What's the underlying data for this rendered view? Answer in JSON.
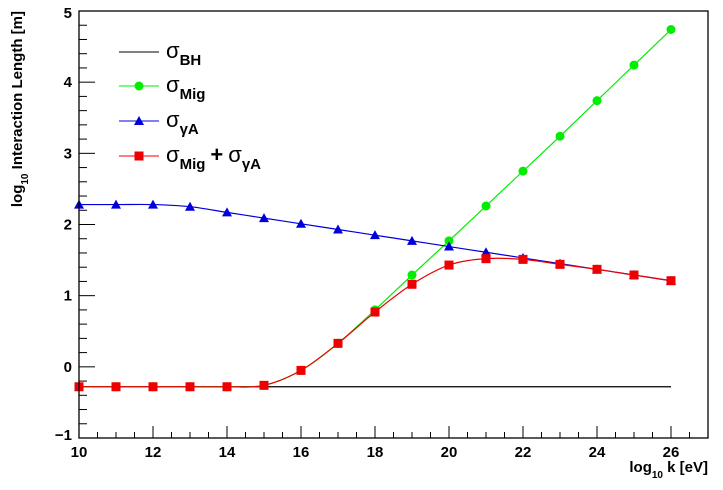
{
  "chart_data": {
    "type": "line",
    "xlabel": "log",
    "xlabel_sub": "10",
    "xlabel_rest": " k [eV]",
    "ylabel": "log",
    "ylabel_sub": "10",
    "ylabel_rest": " Interaction Length [m]",
    "xlim": [
      10,
      27
    ],
    "ylim": [
      -1,
      5
    ],
    "x_ticks": [
      10,
      12,
      14,
      16,
      18,
      20,
      22,
      24,
      26
    ],
    "y_ticks": [
      -1,
      0,
      1,
      2,
      3,
      4,
      5
    ],
    "x_tick_labels": [
      "10",
      "12",
      "14",
      "16",
      "18",
      "20",
      "22",
      "24",
      "26"
    ],
    "y_tick_labels": [
      "−1",
      "0",
      "1",
      "2",
      "3",
      "4",
      "5"
    ],
    "grid": false,
    "legend_position": "top-left",
    "series": [
      {
        "id": "bh",
        "legend": {
          "sym": "σ",
          "sub": "BH"
        },
        "color": "#000000",
        "marker": "none",
        "x": [
          10,
          26
        ],
        "y": [
          -0.28,
          -0.28
        ]
      },
      {
        "id": "mig",
        "legend": {
          "sym": "σ",
          "sub": "Mig"
        },
        "color": "#00ee00",
        "marker": "circle",
        "x": [
          10,
          11,
          12,
          13,
          14,
          15,
          16,
          17,
          18,
          19,
          20,
          21,
          22,
          23,
          24,
          25,
          26
        ],
        "y": [
          -0.28,
          -0.28,
          -0.28,
          -0.28,
          -0.28,
          -0.26,
          -0.05,
          0.33,
          0.8,
          1.29,
          1.77,
          2.26,
          2.75,
          3.24,
          3.74,
          4.24,
          4.74
        ]
      },
      {
        "id": "ga",
        "legend": {
          "sym": "σ",
          "sub": "γA"
        },
        "color": "#0000dd",
        "marker": "triangle",
        "x": [
          10,
          11,
          12,
          13,
          14,
          15,
          16,
          17,
          18,
          19,
          20,
          21,
          22,
          23,
          24,
          25,
          26
        ],
        "y": [
          2.28,
          2.28,
          2.28,
          2.25,
          2.17,
          2.09,
          2.01,
          1.93,
          1.85,
          1.77,
          1.69,
          1.61,
          1.53,
          1.45,
          1.37,
          1.29,
          1.21
        ]
      },
      {
        "id": "sum",
        "legend": {
          "sym": "σ",
          "sub": "Mig",
          "plus": "+",
          "sym2": "σ",
          "sub2": "γA"
        },
        "color": "#ee0000",
        "marker": "square",
        "x": [
          10,
          11,
          12,
          13,
          14,
          15,
          16,
          17,
          18,
          19,
          20,
          21,
          22,
          23,
          24,
          25,
          26
        ],
        "y": [
          -0.28,
          -0.28,
          -0.28,
          -0.28,
          -0.28,
          -0.26,
          -0.05,
          0.33,
          0.77,
          1.16,
          1.43,
          1.52,
          1.51,
          1.44,
          1.37,
          1.29,
          1.21
        ]
      }
    ]
  }
}
